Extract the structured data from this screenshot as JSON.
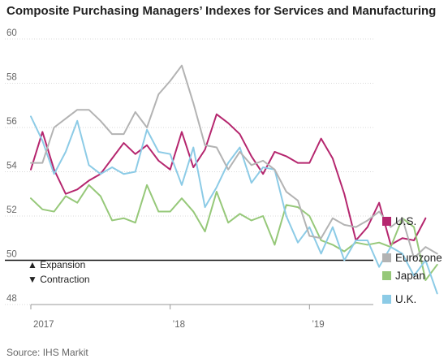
{
  "chart_data": {
    "type": "line",
    "title": "Composite Purchasing Managers’ Indexes for Services and Manufacturing",
    "source": "Source: IHS Markit",
    "ylim": [
      48,
      60
    ],
    "yticks": [
      48,
      50,
      52,
      54,
      56,
      58,
      60
    ],
    "xlim": [
      0,
      29.5
    ],
    "xticks": [
      {
        "x": 0,
        "label": "2017"
      },
      {
        "x": 12,
        "label": "’18"
      },
      {
        "x": 24,
        "label": "’19"
      }
    ],
    "grid": true,
    "baseline": 50,
    "annotations": {
      "expansion": "▲ Expansion",
      "contraction": "▼ Contraction"
    },
    "legend_position": "right",
    "series": [
      {
        "name": "U.S.",
        "color": "#b5266e",
        "values": [
          54.1,
          55.8,
          54.1,
          53.0,
          53.2,
          53.6,
          53.9,
          54.6,
          55.3,
          54.8,
          55.2,
          54.5,
          54.1,
          55.8,
          54.2,
          55.0,
          56.6,
          56.2,
          55.7,
          54.7,
          53.9,
          54.9,
          54.7,
          54.4,
          54.4,
          55.5,
          54.6,
          53.0,
          50.9,
          51.5,
          52.6,
          50.7,
          51.0,
          50.9,
          51.9
        ]
      },
      {
        "name": "Eurozone",
        "color": "#b3b3b3",
        "values": [
          54.4,
          54.4,
          56.0,
          56.4,
          56.8,
          56.8,
          56.3,
          55.7,
          55.7,
          56.7,
          56.0,
          57.5,
          58.1,
          58.8,
          57.1,
          55.2,
          55.1,
          54.1,
          54.9,
          54.3,
          54.5,
          54.1,
          53.1,
          52.7,
          51.1,
          51.0,
          51.9,
          51.6,
          51.5,
          51.8,
          52.2,
          51.5,
          51.9,
          50.1,
          50.6,
          50.3
        ]
      },
      {
        "name": "Japan",
        "color": "#96c879",
        "values": [
          52.8,
          52.3,
          52.2,
          52.9,
          52.6,
          53.4,
          52.9,
          51.8,
          51.9,
          51.7,
          53.4,
          52.2,
          52.2,
          52.8,
          52.2,
          51.3,
          53.1,
          51.7,
          52.1,
          51.8,
          52.0,
          50.7,
          52.5,
          52.4,
          52.0,
          50.9,
          50.7,
          50.4,
          50.8,
          50.7,
          50.8,
          50.6,
          51.9,
          51.5,
          49.1,
          49.8
        ]
      },
      {
        "name": "U.K.",
        "color": "#8ccbe6",
        "values": [
          56.5,
          55.4,
          53.9,
          54.9,
          56.3,
          54.3,
          53.9,
          54.2,
          53.9,
          54.0,
          55.9,
          54.9,
          54.8,
          53.4,
          55.1,
          52.4,
          53.3,
          54.4,
          55.1,
          53.5,
          54.2,
          54.1,
          52.0,
          50.8,
          51.5,
          50.3,
          51.5,
          50.0,
          50.9,
          50.9,
          49.7,
          50.6,
          50.3,
          49.3,
          50.0,
          48.5
        ]
      }
    ]
  }
}
